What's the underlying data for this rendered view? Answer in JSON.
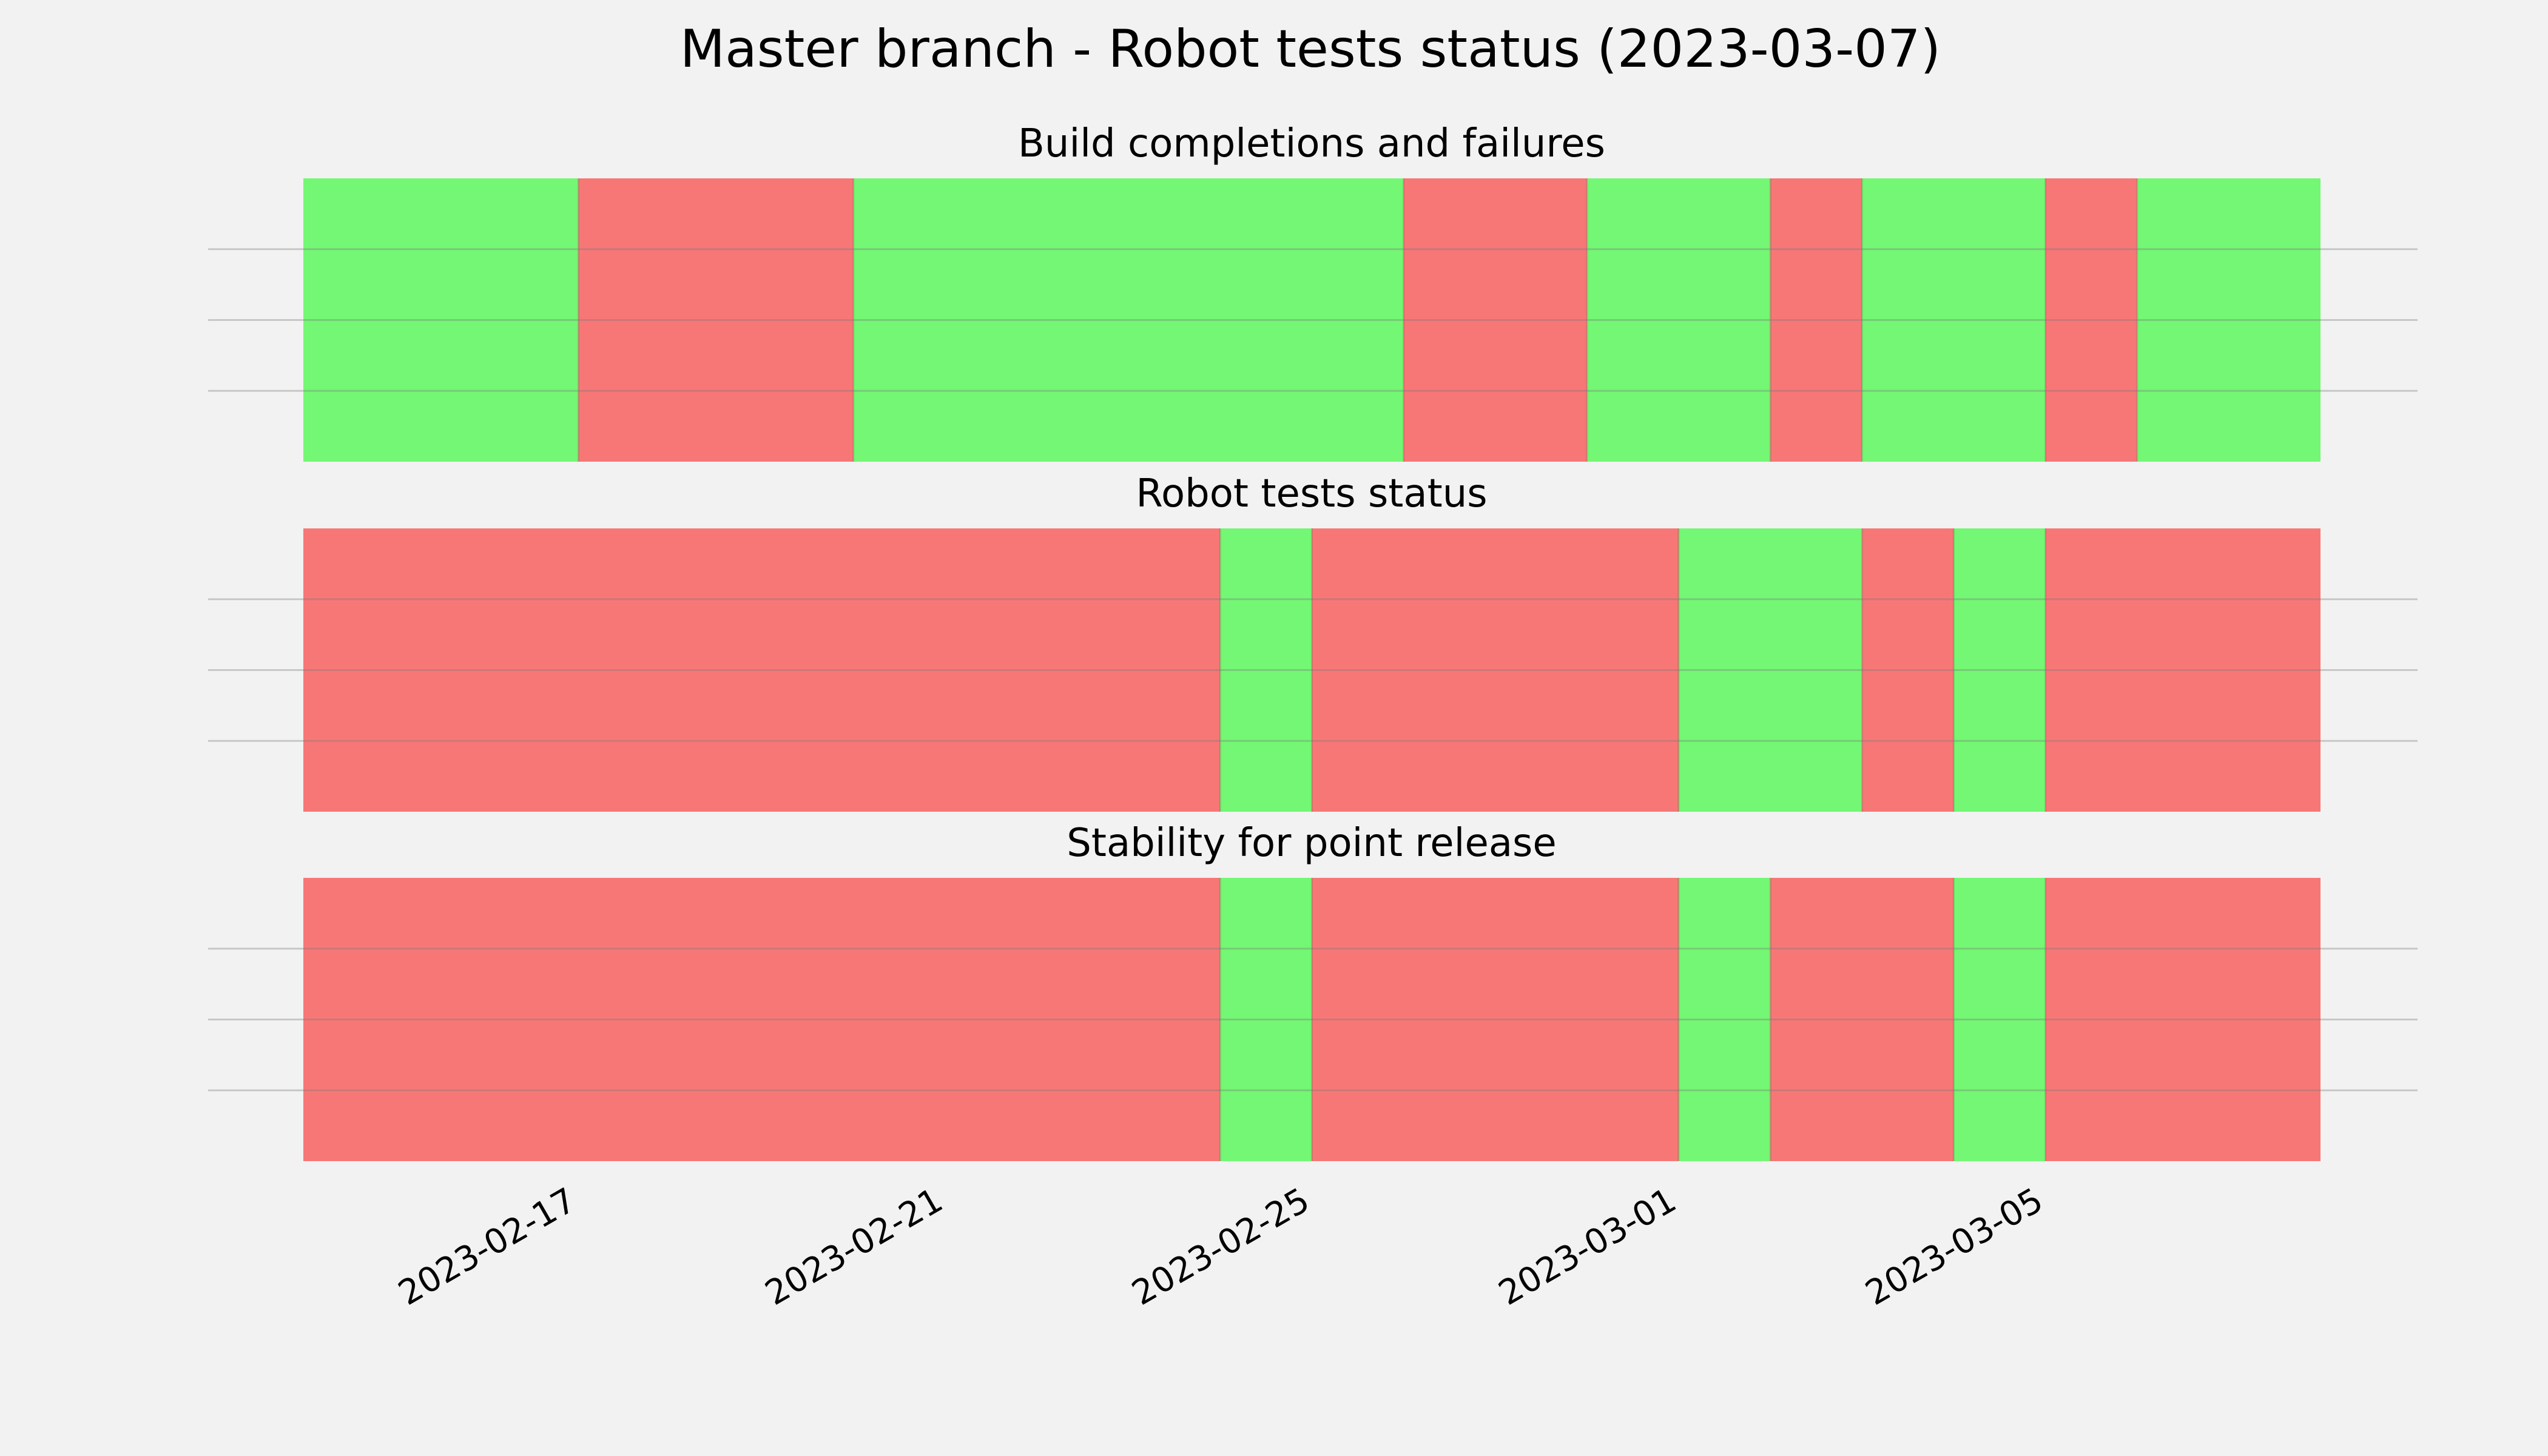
{
  "chart_data": {
    "type": "timeline",
    "title": "Master branch - Robot tests status (2023-03-07)",
    "x_range": [
      "2023-02-14",
      "2023-03-08"
    ],
    "x_ticks": [
      "2023-02-17",
      "2023-02-21",
      "2023-02-25",
      "2023-03-01",
      "2023-03-05"
    ],
    "grid": "horizontal gridlines, no y tick labels",
    "colors": {
      "pass": "#74f774",
      "fail": "#f77777",
      "background": "#f2f2f2",
      "grid": "#c8c8c8"
    },
    "panels": [
      {
        "title": "Build completions and failures",
        "segments": [
          {
            "start": "2023-02-14",
            "end": "2023-02-17",
            "status": "pass"
          },
          {
            "start": "2023-02-17",
            "end": "2023-02-20",
            "status": "fail"
          },
          {
            "start": "2023-02-20",
            "end": "2023-02-26",
            "status": "pass"
          },
          {
            "start": "2023-02-26",
            "end": "2023-02-28",
            "status": "fail"
          },
          {
            "start": "2023-02-28",
            "end": "2023-03-02",
            "status": "pass"
          },
          {
            "start": "2023-03-02",
            "end": "2023-03-03",
            "status": "fail"
          },
          {
            "start": "2023-03-03",
            "end": "2023-03-05",
            "status": "pass"
          },
          {
            "start": "2023-03-05",
            "end": "2023-03-06",
            "status": "fail"
          },
          {
            "start": "2023-03-06",
            "end": "2023-03-08",
            "status": "pass"
          }
        ]
      },
      {
        "title": "Robot tests status",
        "segments": [
          {
            "start": "2023-02-14",
            "end": "2023-02-24",
            "status": "fail"
          },
          {
            "start": "2023-02-24",
            "end": "2023-02-25",
            "status": "pass"
          },
          {
            "start": "2023-02-25",
            "end": "2023-03-01",
            "status": "fail"
          },
          {
            "start": "2023-03-01",
            "end": "2023-03-03",
            "status": "pass"
          },
          {
            "start": "2023-03-03",
            "end": "2023-03-04",
            "status": "fail"
          },
          {
            "start": "2023-03-04",
            "end": "2023-03-05",
            "status": "pass"
          },
          {
            "start": "2023-03-05",
            "end": "2023-03-08",
            "status": "fail"
          }
        ]
      },
      {
        "title": "Stability for point release",
        "segments": [
          {
            "start": "2023-02-14",
            "end": "2023-02-24",
            "status": "fail"
          },
          {
            "start": "2023-02-24",
            "end": "2023-02-25",
            "status": "pass"
          },
          {
            "start": "2023-02-25",
            "end": "2023-03-01",
            "status": "fail"
          },
          {
            "start": "2023-03-01",
            "end": "2023-03-02",
            "status": "pass"
          },
          {
            "start": "2023-03-02",
            "end": "2023-03-04",
            "status": "fail"
          },
          {
            "start": "2023-03-04",
            "end": "2023-03-05",
            "status": "pass"
          },
          {
            "start": "2023-03-05",
            "end": "2023-03-08",
            "status": "fail"
          }
        ]
      }
    ]
  }
}
